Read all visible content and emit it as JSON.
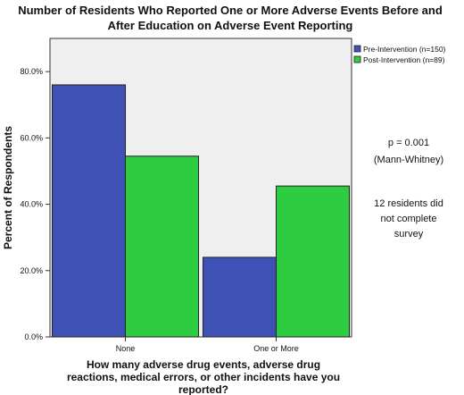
{
  "chart_data": {
    "type": "bar",
    "title": [
      "Number of Residents Who Reported One or More Adverse Events Before and",
      "After Education on Adverse Event Reporting"
    ],
    "xlabel": [
      "How many adverse drug events, adverse drug",
      "reactions, medical errors, or other incidents have you",
      "reported?"
    ],
    "ylabel": "Percent of Respondents",
    "categories": [
      "None",
      "One or More"
    ],
    "series": [
      {
        "name": "Pre-Intervention (n=150)",
        "color": "#3f51b5",
        "values": [
          76.0,
          24.0
        ]
      },
      {
        "name": "Post-Intervention (n=89)",
        "color": "#2ecc40",
        "values": [
          54.5,
          45.5
        ]
      }
    ],
    "ylim": [
      0,
      90
    ],
    "yticks": [
      0,
      20,
      40,
      60,
      80
    ],
    "ytick_labels": [
      "0.0%",
      "20.0%",
      "40.0%",
      "60.0%",
      "80.0%"
    ],
    "legend_position": "top-right",
    "grid": false,
    "plot_background": "#efefef",
    "annotations": [
      [
        "p = 0.001",
        "(Mann-Whitney)"
      ],
      [
        "12 residents did",
        "not complete",
        "survey"
      ]
    ]
  }
}
